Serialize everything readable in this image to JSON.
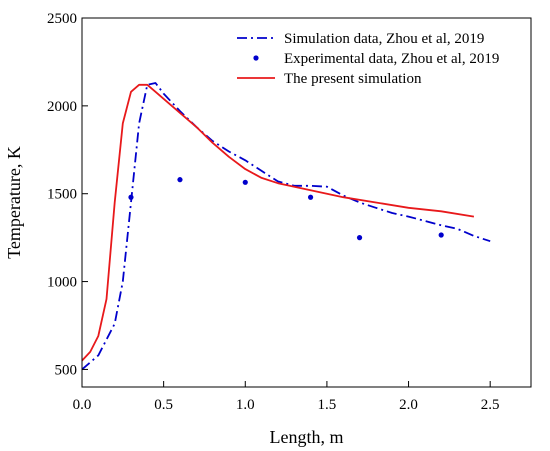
{
  "chart_data": {
    "type": "line",
    "xlabel": "Length, m",
    "ylabel": "Temperature, K",
    "xlim": [
      0.0,
      2.75
    ],
    "ylim": [
      400,
      2500
    ],
    "xticks": [
      0.0,
      0.5,
      1.0,
      1.5,
      2.0,
      2.5
    ],
    "xtick_labels": [
      "0.0",
      "0.5",
      "1.0",
      "1.5",
      "2.0",
      "2.5"
    ],
    "yticks": [
      500,
      1000,
      1500,
      2000,
      2500
    ],
    "ytick_labels": [
      "500",
      "1000",
      "1500",
      "2000",
      "2500"
    ],
    "grid": false,
    "legend_position": "top-right",
    "series": [
      {
        "name": "Simulation data, Zhou et al, 2019",
        "style": "dash-dot",
        "color": "#0000cc",
        "x": [
          0.0,
          0.1,
          0.2,
          0.25,
          0.3,
          0.35,
          0.4,
          0.45,
          0.5,
          0.6,
          0.7,
          0.8,
          0.9,
          1.0,
          1.1,
          1.2,
          1.3,
          1.4,
          1.5,
          1.6,
          1.7,
          1.8,
          1.9,
          2.0,
          2.1,
          2.2,
          2.3,
          2.4,
          2.5
        ],
        "y": [
          500,
          580,
          760,
          1000,
          1450,
          1900,
          2120,
          2130,
          2070,
          1970,
          1880,
          1800,
          1740,
          1690,
          1630,
          1570,
          1545,
          1545,
          1540,
          1490,
          1450,
          1420,
          1390,
          1370,
          1345,
          1320,
          1300,
          1260,
          1230
        ]
      },
      {
        "name": "Experimental data, Zhou et al, 2019",
        "style": "markers",
        "color": "#0000cc",
        "x": [
          0.3,
          0.6,
          1.0,
          1.4,
          1.7,
          2.2
        ],
        "y": [
          1480,
          1580,
          1565,
          1480,
          1250,
          1265
        ]
      },
      {
        "name": "The present simulation",
        "style": "solid",
        "color": "#e8191b",
        "x": [
          0.0,
          0.05,
          0.1,
          0.15,
          0.2,
          0.25,
          0.3,
          0.35,
          0.4,
          0.45,
          0.5,
          0.6,
          0.7,
          0.8,
          0.9,
          1.0,
          1.1,
          1.2,
          1.4,
          1.6,
          1.8,
          2.0,
          2.2,
          2.4
        ],
        "y": [
          550,
          600,
          690,
          900,
          1450,
          1900,
          2080,
          2120,
          2120,
          2080,
          2040,
          1960,
          1880,
          1790,
          1710,
          1640,
          1590,
          1560,
          1520,
          1480,
          1450,
          1420,
          1400,
          1370
        ]
      }
    ]
  }
}
